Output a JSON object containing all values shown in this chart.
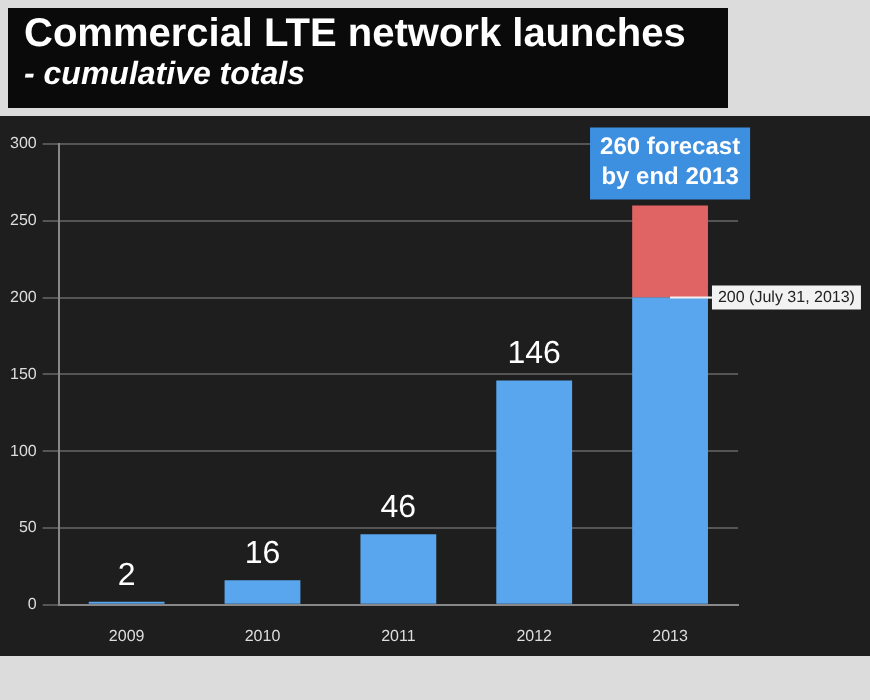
{
  "chart_data": {
    "type": "bar",
    "title": "Commercial LTE network launches",
    "subtitle": "- cumulative totals",
    "categories": [
      "2009",
      "2010",
      "2011",
      "2012",
      "2013"
    ],
    "stacked": true,
    "series": [
      {
        "color": "#5aa6ee",
        "values": [
          2,
          16,
          46,
          146,
          200
        ],
        "value_labels": [
          "2",
          "16",
          "46",
          "146",
          null
        ]
      },
      {
        "color": "#e06464",
        "values": [
          null,
          null,
          null,
          null,
          60
        ]
      }
    ],
    "ylim": [
      0,
      300
    ],
    "yticks": [
      0,
      50,
      100,
      150,
      200,
      250,
      300
    ],
    "grid": "y",
    "legend": false,
    "annotations": [
      {
        "text": "260 forecast by end 2013",
        "x": "2013",
        "y": 260
      },
      {
        "text": "200 (July 31, 2013)",
        "x": "2013",
        "y": 200
      }
    ]
  }
}
